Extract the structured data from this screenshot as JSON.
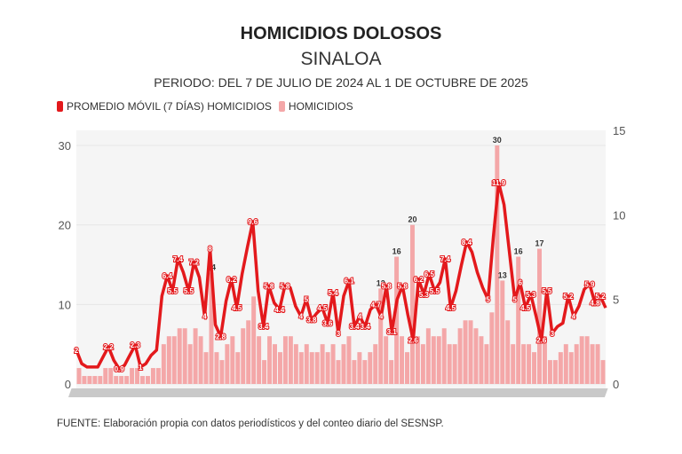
{
  "chart_data": {
    "type": "bar+line",
    "title": "HOMICIDIOS DOLOSOS",
    "subtitle": "SINALOA",
    "period": "PERIODO: DEL 7 DE JULIO DE 2024 AL 1 DE OCTUBRE DE 2025",
    "legend": [
      {
        "label": "PROMEDIO MÓVIL (7 DÍAS) HOMICIDIOS",
        "color": "#e3191c"
      },
      {
        "label": "HOMICIDIOS",
        "color": "#f4a7a8"
      }
    ],
    "legend_position": "top-left",
    "left_axis": {
      "ylim": [
        0,
        30
      ],
      "ticks": [
        "0",
        "10",
        "20",
        "30"
      ]
    },
    "right_axis": {
      "ylim": [
        0,
        15
      ],
      "ticks": [
        "0",
        "5",
        "10",
        "15"
      ]
    },
    "grid": true,
    "x_range": [
      "2024-07-07",
      "2025-10-01"
    ],
    "series": [
      {
        "name": "HOMICIDIOS",
        "type": "bar",
        "axis": "left",
        "color": "#f4a7a8",
        "values": [
          2,
          1,
          1,
          1,
          1,
          2,
          2,
          1,
          1,
          1,
          2,
          2,
          1,
          1,
          2,
          2,
          5,
          6,
          6,
          7,
          7,
          5,
          7,
          6,
          4,
          14,
          4,
          3,
          5,
          6,
          4,
          7,
          8,
          11,
          6,
          3,
          6,
          5,
          4,
          6,
          6,
          5,
          4,
          5,
          4,
          4,
          5,
          4,
          5,
          3,
          5,
          6,
          3,
          4,
          3,
          4,
          5,
          12,
          6,
          3,
          16,
          6,
          4,
          20,
          6,
          5,
          7,
          6,
          6,
          7,
          5,
          5,
          7,
          8,
          8,
          7,
          6,
          5,
          9,
          30,
          13,
          8,
          5,
          16,
          5,
          5,
          4,
          17,
          6,
          3,
          3,
          4,
          5,
          4,
          5,
          6,
          6,
          5,
          5,
          3
        ]
      },
      {
        "name": "PROMEDIO MÓVIL (7 DÍAS) HOMICIDIOS",
        "type": "line",
        "axis": "right",
        "color": "#e3191c",
        "values": [
          2.0,
          1.2,
          1.0,
          1.0,
          1.0,
          1.6,
          2.2,
          1.4,
          0.9,
          1.1,
          1.7,
          2.3,
          1.0,
          1.2,
          1.7,
          2.0,
          5.2,
          6.4,
          5.5,
          7.4,
          6.6,
          5.5,
          7.2,
          6.3,
          4.0,
          8.0,
          3.5,
          2.8,
          4.9,
          6.2,
          4.5,
          6.5,
          8.1,
          9.6,
          5.5,
          3.4,
          5.8,
          4.8,
          4.4,
          5.8,
          5.7,
          4.6,
          4.0,
          5.0,
          3.8,
          4.2,
          4.5,
          3.6,
          5.4,
          3.0,
          5.2,
          6.1,
          3.4,
          4.0,
          3.4,
          4.4,
          4.7,
          4.0,
          5.8,
          3.1,
          5.0,
          5.8,
          4.1,
          2.6,
          6.2,
          5.3,
          6.5,
          5.5,
          6.0,
          7.4,
          4.5,
          5.5,
          7.0,
          8.4,
          7.8,
          6.6,
          5.7,
          5.0,
          8.7,
          11.9,
          10.6,
          7.8,
          5.0,
          6.0,
          4.5,
          5.3,
          4.0,
          2.6,
          5.5,
          3.0,
          3.4,
          3.6,
          5.2,
          4.0,
          4.6,
          5.6,
          5.9,
          4.8,
          5.2,
          4.5
        ]
      }
    ],
    "source": "FUENTE: Elaboración propia con datos periodísticos y del conteo diario del SESNSP."
  }
}
